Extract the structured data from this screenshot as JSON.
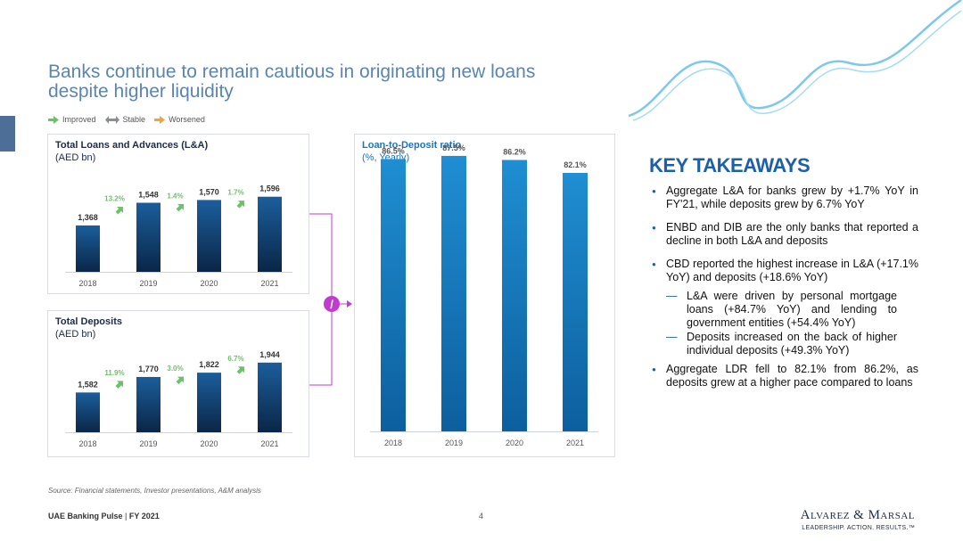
{
  "title_line1": "Banks continue to remain cautious in originating new loans",
  "title_line2": "despite higher liquidity",
  "legend": {
    "improved": "Improved",
    "stable": "Stable",
    "worsened": "Worsened",
    "colors": {
      "improved": "#6cc26a",
      "stable": "#8a8f96",
      "worsened": "#f2a33a"
    }
  },
  "loans_panel": {
    "title": "Total Loans and Advances (L&A)",
    "subtitle": "(AED bn)"
  },
  "deposits_panel": {
    "title": "Total Deposits",
    "subtitle": "(AED bn)"
  },
  "ldr_panel": {
    "title": "Loan-to-Deposit ratio",
    "subtitle": "(%, Yearly)"
  },
  "operator_symbol": "/",
  "chart_data": [
    {
      "type": "bar",
      "title": "Total Loans and Advances (L&A)",
      "subtitle": "(AED bn)",
      "categories": [
        "2018",
        "2019",
        "2020",
        "2021"
      ],
      "values": [
        1368,
        1548,
        1570,
        1596
      ],
      "value_labels": [
        "1,368",
        "1,548",
        "1,570",
        "1,596"
      ],
      "growth_labels": [
        "13.2%",
        "1.4%",
        "1.7%"
      ],
      "growth_direction": [
        "improved",
        "improved",
        "improved"
      ],
      "ylim": [
        1000,
        1700
      ]
    },
    {
      "type": "bar",
      "title": "Total Deposits",
      "subtitle": "(AED bn)",
      "categories": [
        "2018",
        "2019",
        "2020",
        "2021"
      ],
      "values": [
        1582,
        1770,
        1822,
        1944
      ],
      "value_labels": [
        "1,582",
        "1,770",
        "1,822",
        "1,944"
      ],
      "growth_labels": [
        "11.9%",
        "3.0%",
        "6.7%"
      ],
      "growth_direction": [
        "improved",
        "improved",
        "improved"
      ],
      "ylim": [
        1100,
        2050
      ]
    },
    {
      "type": "bar",
      "title": "Loan-to-Deposit ratio",
      "subtitle": "(%, Yearly)",
      "categories": [
        "2018",
        "2019",
        "2020",
        "2021"
      ],
      "values": [
        86.5,
        87.5,
        86.2,
        82.1
      ],
      "value_labels": [
        "86.5%",
        "87.5%",
        "86.2%",
        "82.1%"
      ],
      "ylim": [
        0,
        92
      ]
    }
  ],
  "key_takeaways": {
    "title": "KEY TAKEAWAYS",
    "items": [
      "Aggregate L&A for banks grew by +1.7% YoY in FY'21, while deposits grew by 6.7% YoY",
      "ENBD and DIB are the only banks that reported a decline in both L&A  and deposits",
      "CBD reported the highest increase in L&A (+17.1% YoY) and deposits (+18.6% YoY)"
    ],
    "sub_items": [
      "L&A were driven by personal mortgage loans (+84.7% YoY) and lending to government entities (+54.4% YoY)",
      "Deposits increased on the back of higher individual deposits (+49.3% YoY)"
    ],
    "last_item": "Aggregate LDR fell to 82.1% from 86.2%, as deposits grew at a higher pace compared to loans"
  },
  "source": "Source: Financial statements, Investor presentations, A&M analysis",
  "footer": {
    "report": "UAE Banking Pulse",
    "separator": " | ",
    "period": "FY 2021",
    "page": "4"
  },
  "brand": {
    "name": "Alvarez & Marsal",
    "tagline": "LEADERSHIP. ACTION. RESULTS.™"
  },
  "colors": {
    "bar_dark": "#0b2d55",
    "bar_blue": "#1d7fc2",
    "title_blue": "#5b84b1",
    "accent": "#1d5fa8",
    "connector": "#c03ccc"
  }
}
